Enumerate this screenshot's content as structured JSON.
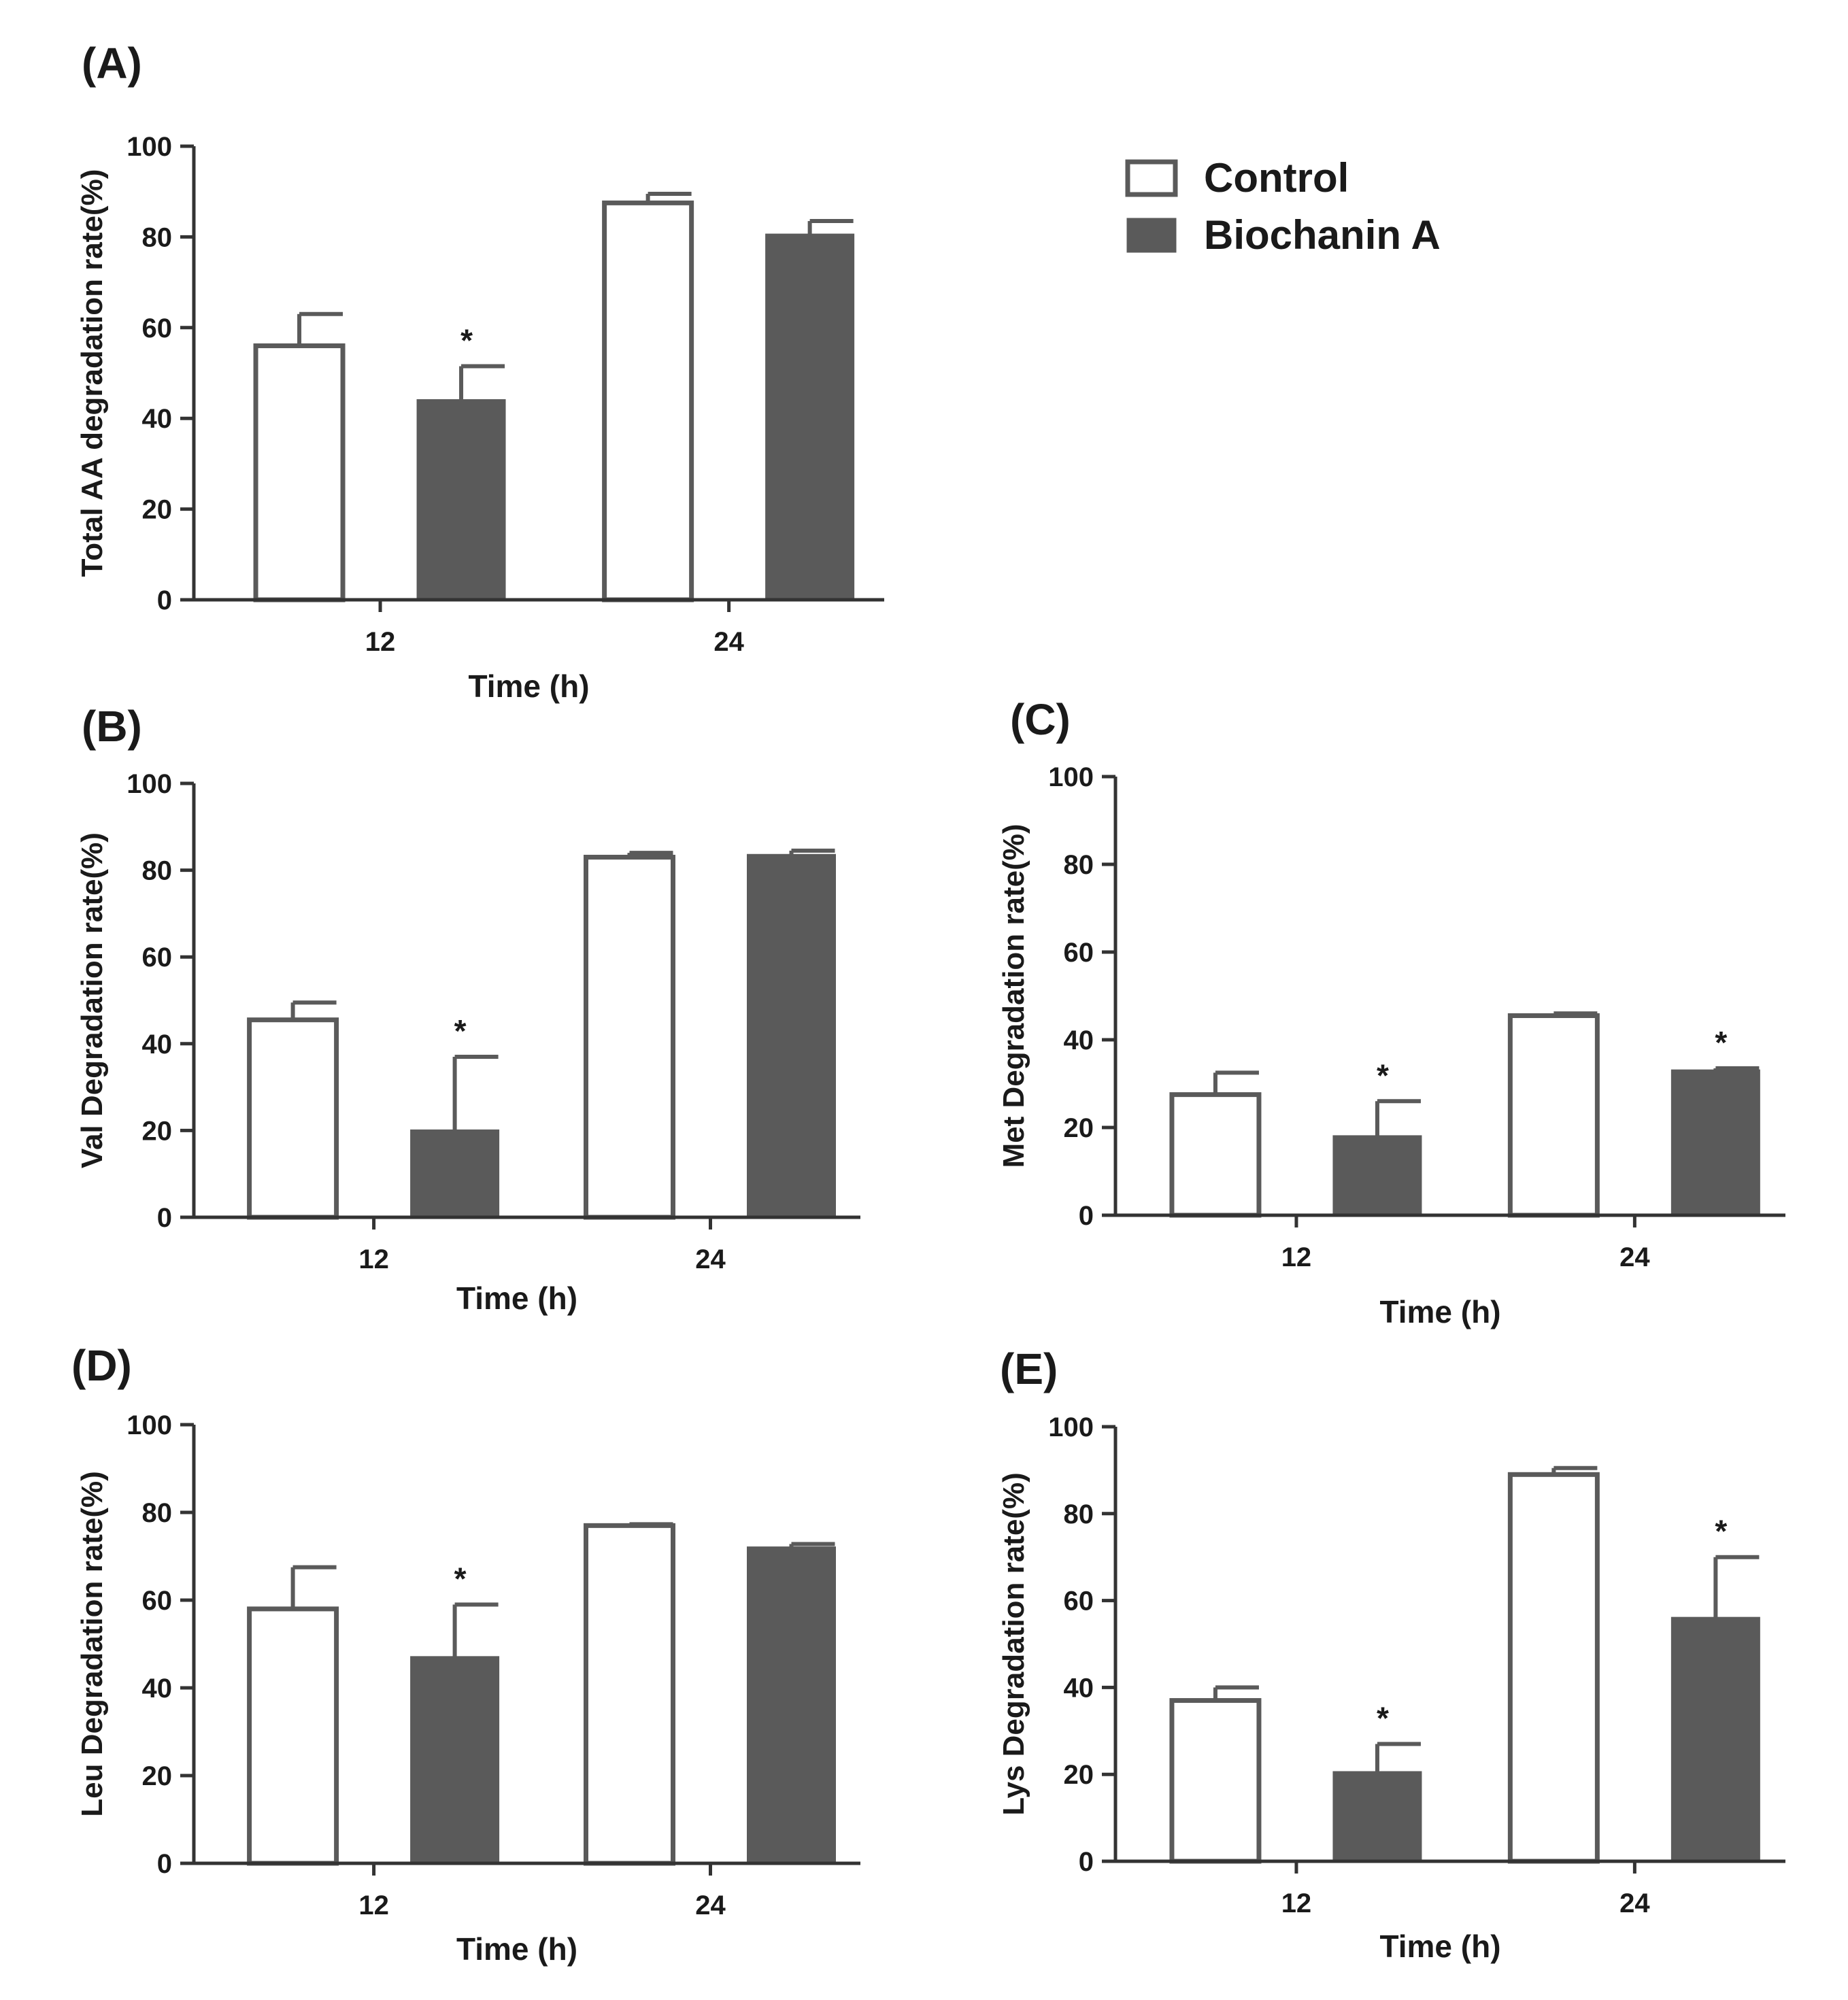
{
  "legend": {
    "placement": "top-right",
    "items": [
      {
        "label": "Control",
        "style": "open",
        "fill": "#ffffff",
        "stroke": "#5a5a5a"
      },
      {
        "label": "Biochanin A",
        "style": "filled",
        "fill": "#5a5a5a",
        "stroke": "#5a5a5a"
      }
    ]
  },
  "colors": {
    "control_fill": "#ffffff",
    "treatment_fill": "#5a5a5a",
    "bar_stroke": "#5a5a5a",
    "axis": "#333333",
    "text": "#1a1a1a"
  },
  "chart_data": [
    {
      "panel": "(A)",
      "type": "bar",
      "categories": [
        "12",
        "24"
      ],
      "xlabel": "Time (h)",
      "ylabel": "Total AA degradation rate(%)",
      "ylim": [
        0,
        100
      ],
      "yticks": [
        0,
        20,
        40,
        60,
        80,
        100
      ],
      "series": [
        {
          "name": "Control",
          "values": [
            56,
            87.5
          ],
          "errors": [
            7,
            2
          ]
        },
        {
          "name": "Biochanin A",
          "values": [
            44,
            80.5
          ],
          "errors": [
            7.5,
            3
          ]
        }
      ],
      "significance": [
        {
          "series": "Biochanin A",
          "category": "12",
          "marker": "*"
        }
      ]
    },
    {
      "panel": "(B)",
      "type": "bar",
      "categories": [
        "12",
        "24"
      ],
      "xlabel": "Time (h)",
      "ylabel": "Val Degradation rate(%)",
      "ylim": [
        0,
        100
      ],
      "yticks": [
        0,
        20,
        40,
        60,
        80,
        100
      ],
      "series": [
        {
          "name": "Control",
          "values": [
            45.5,
            83
          ],
          "errors": [
            4,
            1
          ]
        },
        {
          "name": "Biochanin A",
          "values": [
            20,
            83.5
          ],
          "errors": [
            17,
            1
          ]
        }
      ],
      "significance": [
        {
          "series": "Biochanin A",
          "category": "12",
          "marker": "*"
        }
      ]
    },
    {
      "panel": "(C)",
      "type": "bar",
      "categories": [
        "12",
        "24"
      ],
      "xlabel": "Time (h)",
      "ylabel": "Met Degradation rate(%)",
      "ylim": [
        0,
        100
      ],
      "yticks": [
        0,
        20,
        40,
        60,
        80,
        100
      ],
      "series": [
        {
          "name": "Control",
          "values": [
            27.5,
            45.5
          ],
          "errors": [
            5,
            0.5
          ]
        },
        {
          "name": "Biochanin A",
          "values": [
            18,
            33
          ],
          "errors": [
            8,
            0.5
          ]
        }
      ],
      "significance": [
        {
          "series": "Biochanin A",
          "category": "12",
          "marker": "*"
        },
        {
          "series": "Biochanin A",
          "category": "24",
          "marker": "*"
        }
      ]
    },
    {
      "panel": "(D)",
      "type": "bar",
      "categories": [
        "12",
        "24"
      ],
      "xlabel": "Time (h)",
      "ylabel": "Leu Degradation rate(%)",
      "ylim": [
        0,
        100
      ],
      "yticks": [
        0,
        20,
        40,
        60,
        80,
        100
      ],
      "series": [
        {
          "name": "Control",
          "values": [
            58,
            77
          ],
          "errors": [
            9.5,
            0.3
          ]
        },
        {
          "name": "Biochanin A",
          "values": [
            47,
            72
          ],
          "errors": [
            12,
            0.8
          ]
        }
      ],
      "significance": [
        {
          "series": "Biochanin A",
          "category": "12",
          "marker": "*"
        }
      ]
    },
    {
      "panel": "(E)",
      "type": "bar",
      "categories": [
        "12",
        "24"
      ],
      "xlabel": "Time (h)",
      "ylabel": "Lys Degradation rate(%)",
      "ylim": [
        0,
        100
      ],
      "yticks": [
        0,
        20,
        40,
        60,
        80,
        100
      ],
      "series": [
        {
          "name": "Control",
          "values": [
            37,
            89
          ],
          "errors": [
            3,
            1.5
          ]
        },
        {
          "name": "Biochanin A",
          "values": [
            20.5,
            56
          ],
          "errors": [
            6.5,
            14
          ]
        }
      ],
      "significance": [
        {
          "series": "Biochanin A",
          "category": "12",
          "marker": "*"
        },
        {
          "series": "Biochanin A",
          "category": "24",
          "marker": "*"
        }
      ]
    }
  ]
}
